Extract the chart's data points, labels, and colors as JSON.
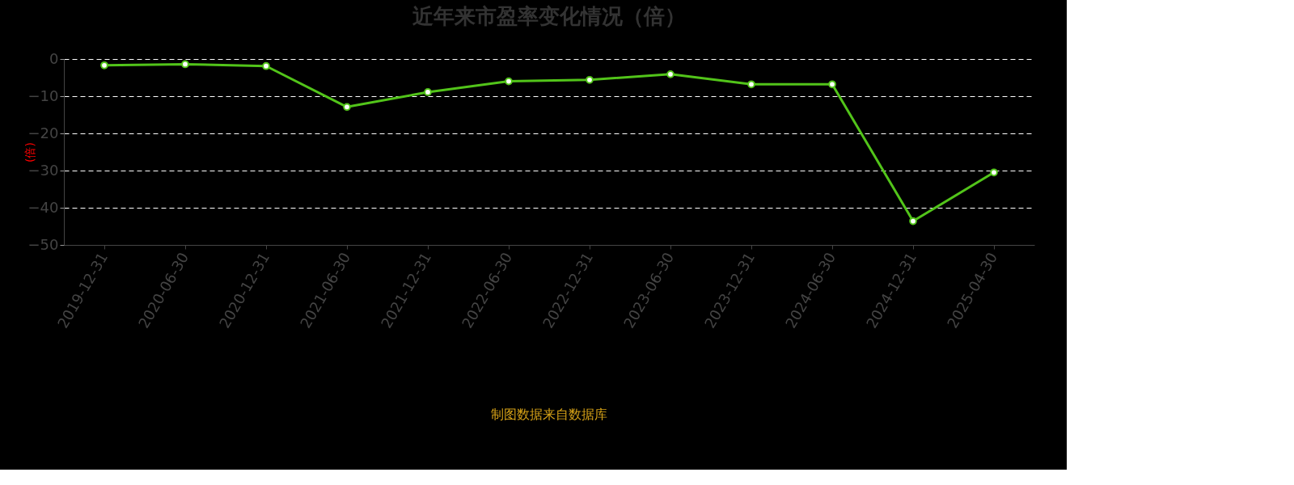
{
  "chart_data": {
    "type": "line",
    "title": "近年来市盈率变化情况（倍）",
    "ylabel": "(倍)",
    "categories": [
      "2019-12-31",
      "2020-06-30",
      "2020-12-31",
      "2021-06-30",
      "2021-12-31",
      "2022-06-30",
      "2022-12-31",
      "2023-06-30",
      "2023-12-31",
      "2024-06-30",
      "2024-12-31",
      "2025-04-30"
    ],
    "series": [
      {
        "color": "#52c41a",
        "values": [
          -1.7,
          -1.4,
          -1.9,
          -12.9,
          -8.9,
          -6.0,
          -5.6,
          -4.1,
          -6.8,
          -6.8,
          -43.6,
          -30.5
        ]
      }
    ],
    "ylim": [
      -50,
      0
    ],
    "yticks": [
      -50,
      -40,
      -30,
      -20,
      -10,
      0
    ],
    "grid": "y",
    "marker": "circle",
    "line_style": "solid",
    "annotations": [
      "制图数据来自数据库"
    ]
  }
}
